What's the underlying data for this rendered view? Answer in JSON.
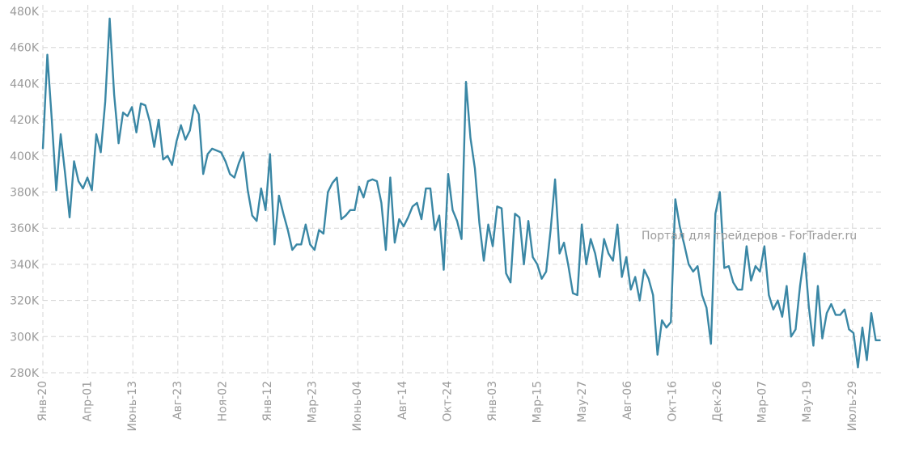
{
  "chart_data": {
    "type": "line",
    "title": "",
    "xlabel": "",
    "ylabel": "",
    "ylim": [
      280000,
      480000
    ],
    "yticks": [
      280000,
      300000,
      320000,
      340000,
      360000,
      380000,
      400000,
      420000,
      440000,
      460000,
      480000
    ],
    "ytick_labels": [
      "280K",
      "300K",
      "320K",
      "340K",
      "360K",
      "380K",
      "400K",
      "420K",
      "440K",
      "460K",
      "480K"
    ],
    "x_tick_labels": [
      "Янв-20",
      "Апр-01",
      "Июнь-13",
      "Авг-23",
      "Ноя-02",
      "Янв-12",
      "Мар-23",
      "Июнь-04",
      "Авг-14",
      "Окт-24",
      "Янв-03",
      "Мар-15",
      "Мay-27",
      "Авг-06",
      "Окт-16",
      "Дек-26",
      "Мар-07",
      "Мay-19",
      "Июль-29"
    ],
    "grid": true,
    "series": [
      {
        "color": "#3a87a5",
        "values": [
          404000,
          456000,
          420000,
          381000,
          412000,
          390000,
          366000,
          397000,
          386000,
          382000,
          388000,
          381000,
          412000,
          402000,
          430000,
          476000,
          434000,
          407000,
          424000,
          422000,
          427000,
          413000,
          429000,
          428000,
          419000,
          405000,
          420000,
          398000,
          400000,
          395000,
          408000,
          417000,
          409000,
          414000,
          428000,
          423000,
          390000,
          401000,
          404000,
          403000,
          402000,
          397000,
          390000,
          388000,
          396000,
          402000,
          381000,
          367000,
          364000,
          382000,
          370000,
          401000,
          351000,
          378000,
          368000,
          359000,
          348000,
          351000,
          351000,
          362000,
          351000,
          348000,
          359000,
          357000,
          380000,
          385000,
          388000,
          365000,
          367000,
          370000,
          370000,
          383000,
          377000,
          386000,
          387000,
          386000,
          374000,
          348000,
          388000,
          352000,
          365000,
          361000,
          366000,
          372000,
          374000,
          365000,
          382000,
          382000,
          359000,
          367000,
          337000,
          390000,
          370000,
          364000,
          354000,
          441000,
          410000,
          393000,
          363000,
          342000,
          362000,
          350000,
          372000,
          371000,
          335000,
          330000,
          368000,
          366000,
          340000,
          364000,
          344000,
          340000,
          332000,
          336000,
          359000,
          387000,
          346000,
          352000,
          339000,
          324000,
          323000,
          362000,
          340000,
          354000,
          346000,
          333000,
          354000,
          346000,
          342000,
          362000,
          333000,
          344000,
          326000,
          333000,
          320000,
          337000,
          332000,
          323000,
          290000,
          309000,
          305000,
          308000,
          376000,
          361000,
          351000,
          340000,
          336000,
          339000,
          323000,
          316000,
          296000,
          368000,
          380000,
          338000,
          339000,
          330000,
          326000,
          326000,
          350000,
          331000,
          339000,
          336000,
          350000,
          323000,
          315000,
          320000,
          311000,
          328000,
          300000,
          304000,
          328000,
          346000,
          316000,
          295000,
          328000,
          299000,
          313000,
          318000,
          312000,
          312000,
          315000,
          304000,
          302000,
          283000,
          305000,
          287000,
          313000,
          298000,
          298000
        ]
      }
    ],
    "watermark": "Портал для трейдеров - ForTrader.ru"
  }
}
